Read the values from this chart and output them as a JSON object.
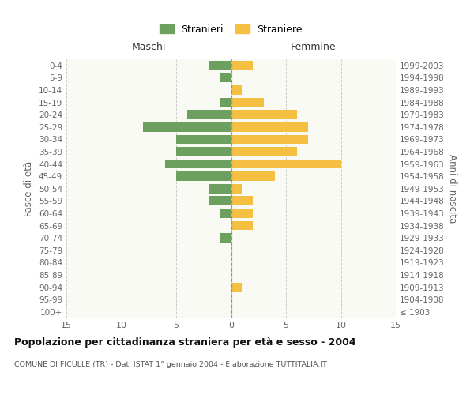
{
  "age_groups": [
    "100+",
    "95-99",
    "90-94",
    "85-89",
    "80-84",
    "75-79",
    "70-74",
    "65-69",
    "60-64",
    "55-59",
    "50-54",
    "45-49",
    "40-44",
    "35-39",
    "30-34",
    "25-29",
    "20-24",
    "15-19",
    "10-14",
    "5-9",
    "0-4"
  ],
  "birth_years": [
    "≤ 1903",
    "1904-1908",
    "1909-1913",
    "1914-1918",
    "1919-1923",
    "1924-1928",
    "1929-1933",
    "1934-1938",
    "1939-1943",
    "1944-1948",
    "1949-1953",
    "1954-1958",
    "1959-1963",
    "1964-1968",
    "1969-1973",
    "1974-1978",
    "1979-1983",
    "1984-1988",
    "1989-1993",
    "1994-1998",
    "1999-2003"
  ],
  "males": [
    0,
    0,
    0,
    0,
    0,
    0,
    1,
    0,
    1,
    2,
    2,
    5,
    6,
    5,
    5,
    8,
    4,
    1,
    0,
    1,
    2
  ],
  "females": [
    0,
    0,
    1,
    0,
    0,
    0,
    0,
    2,
    2,
    2,
    1,
    4,
    10,
    6,
    7,
    7,
    6,
    3,
    1,
    0,
    2
  ],
  "male_color": "#6d9f5e",
  "female_color": "#f5bf42",
  "bar_height": 0.75,
  "xlim": 15,
  "title": "Popolazione per cittadinanza straniera per età e sesso - 2004",
  "subtitle": "COMUNE DI FICULLE (TR) - Dati ISTAT 1° gennaio 2004 - Elaborazione TUTTITALIA.IT",
  "ylabel_left": "Fasce di età",
  "ylabel_right": "Anni di nascita",
  "xlabel_left": "Maschi",
  "xlabel_right": "Femmine",
  "legend_stranieri": "Stranieri",
  "legend_straniere": "Straniere",
  "bg_color": "#ffffff",
  "plot_bg_color": "#fafaf4",
  "grid_color": "#cccccc",
  "axis_label_color": "#666666",
  "tick_color": "#666666"
}
